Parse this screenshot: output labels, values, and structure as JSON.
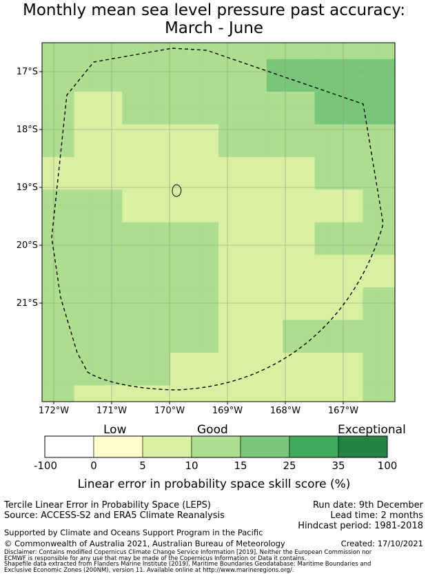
{
  "title_line1": "Monthly mean sea level pressure past accuracy:",
  "title_line2": "March - June",
  "lat_labels": [
    "17°S",
    "18°S",
    "19°S",
    "20°S",
    "21°S"
  ],
  "lon_labels": [
    "172°W",
    "171°W",
    "170°W",
    "169°W",
    "168°W",
    "167°W"
  ],
  "category_labels": {
    "low": "Low",
    "good": "Good",
    "exceptional": "Exceptional"
  },
  "colorbar": {
    "ticks": [
      "-100",
      "0",
      "5",
      "10",
      "15",
      "25",
      "35",
      "100"
    ],
    "colors": [
      "#ffffff",
      "#ffffcc",
      "#d9f0a3",
      "#addd8e",
      "#78c679",
      "#41ab5d",
      "#238443"
    ],
    "title": "Linear error in probability space skill score (%)"
  },
  "map_colors": {
    "c1": "#d9f0a3",
    "c2": "#addd8e",
    "c3": "#78c679"
  },
  "map_grid": {
    "lon_range": [
      -172.2,
      -166.2
    ],
    "lat_range": [
      -22.7,
      -16.5
    ],
    "rows": [
      [
        "c2",
        "c2",
        "c2",
        "c2",
        "c2",
        "c2",
        "c2",
        "c2",
        "c2",
        "c2",
        "c2",
        "c2",
        "c2",
        "c2",
        "c2",
        "c2",
        "c2",
        "c2",
        "c2",
        "c2",
        "c2",
        "c2"
      ],
      [
        "c2",
        "c2",
        "c2",
        "c2",
        "c2",
        "c2",
        "c2",
        "c2",
        "c2",
        "c2",
        "c2",
        "c2",
        "c2",
        "c2",
        "c3",
        "c3",
        "c3",
        "c3",
        "c3",
        "c3",
        "c3",
        "c3"
      ],
      [
        "c2",
        "c2",
        "c2",
        "c2",
        "c2",
        "c2",
        "c2",
        "c2",
        "c2",
        "c2",
        "c2",
        "c2",
        "c2",
        "c2",
        "c3",
        "c3",
        "c3",
        "c3",
        "c3",
        "c3",
        "c3",
        "c3"
      ],
      [
        "c2",
        "c2",
        "c1",
        "c1",
        "c1",
        "c2",
        "c2",
        "c2",
        "c2",
        "c2",
        "c2",
        "c2",
        "c2",
        "c2",
        "c2",
        "c2",
        "c2",
        "c3",
        "c3",
        "c3",
        "c3",
        "c3"
      ],
      [
        "c2",
        "c2",
        "c1",
        "c1",
        "c1",
        "c2",
        "c2",
        "c2",
        "c2",
        "c2",
        "c2",
        "c2",
        "c2",
        "c2",
        "c2",
        "c2",
        "c2",
        "c3",
        "c3",
        "c3",
        "c3",
        "c3"
      ],
      [
        "c2",
        "c2",
        "c1",
        "c1",
        "c1",
        "c1",
        "c1",
        "c1",
        "c1",
        "c1",
        "c1",
        "c2",
        "c2",
        "c2",
        "c2",
        "c2",
        "c2",
        "c2",
        "c2",
        "c2",
        "c2",
        "c2"
      ],
      [
        "c2",
        "c2",
        "c1",
        "c1",
        "c1",
        "c1",
        "c1",
        "c1",
        "c1",
        "c1",
        "c1",
        "c2",
        "c2",
        "c2",
        "c2",
        "c2",
        "c2",
        "c2",
        "c2",
        "c2",
        "c2",
        "c2"
      ],
      [
        "c1",
        "c1",
        "c1",
        "c1",
        "c1",
        "c1",
        "c1",
        "c1",
        "c1",
        "c1",
        "c1",
        "c1",
        "c1",
        "c1",
        "c1",
        "c1",
        "c1",
        "c2",
        "c2",
        "c2",
        "c2",
        "c2"
      ],
      [
        "c1",
        "c1",
        "c1",
        "c1",
        "c1",
        "c1",
        "c1",
        "c1",
        "c1",
        "c1",
        "c1",
        "c1",
        "c1",
        "c1",
        "c1",
        "c1",
        "c1",
        "c2",
        "c2",
        "c2",
        "c2",
        "c2"
      ],
      [
        "c2",
        "c2",
        "c2",
        "c2",
        "c2",
        "c1",
        "c1",
        "c1",
        "c1",
        "c1",
        "c1",
        "c1",
        "c1",
        "c1",
        "c1",
        "c1",
        "c1",
        "c1",
        "c1",
        "c1",
        "c2",
        "c2"
      ],
      [
        "c2",
        "c2",
        "c2",
        "c2",
        "c2",
        "c1",
        "c1",
        "c1",
        "c1",
        "c1",
        "c1",
        "c1",
        "c1",
        "c1",
        "c1",
        "c1",
        "c1",
        "c1",
        "c1",
        "c1",
        "c2",
        "c2"
      ],
      [
        "c2",
        "c2",
        "c2",
        "c2",
        "c2",
        "c2",
        "c2",
        "c2",
        "c2",
        "c2",
        "c2",
        "c1",
        "c1",
        "c1",
        "c1",
        "c1",
        "c1",
        "c2",
        "c2",
        "c2",
        "c2",
        "c2"
      ],
      [
        "c2",
        "c2",
        "c2",
        "c2",
        "c2",
        "c2",
        "c2",
        "c2",
        "c2",
        "c2",
        "c2",
        "c1",
        "c1",
        "c1",
        "c1",
        "c1",
        "c1",
        "c2",
        "c2",
        "c2",
        "c2",
        "c2"
      ],
      [
        "c2",
        "c2",
        "c2",
        "c2",
        "c2",
        "c2",
        "c2",
        "c2",
        "c2",
        "c2",
        "c2",
        "c1",
        "c1",
        "c1",
        "c1",
        "c1",
        "c1",
        "c1",
        "c1",
        "c1",
        "c1",
        "c1"
      ],
      [
        "c2",
        "c2",
        "c2",
        "c2",
        "c2",
        "c2",
        "c2",
        "c2",
        "c2",
        "c2",
        "c2",
        "c1",
        "c1",
        "c1",
        "c1",
        "c1",
        "c1",
        "c1",
        "c1",
        "c1",
        "c1",
        "c1"
      ],
      [
        "c2",
        "c2",
        "c2",
        "c2",
        "c2",
        "c2",
        "c2",
        "c2",
        "c2",
        "c2",
        "c2",
        "c1",
        "c1",
        "c1",
        "c1",
        "c1",
        "c1",
        "c1",
        "c1",
        "c1",
        "c2",
        "c2"
      ],
      [
        "c2",
        "c2",
        "c2",
        "c2",
        "c2",
        "c2",
        "c2",
        "c2",
        "c2",
        "c2",
        "c2",
        "c1",
        "c1",
        "c1",
        "c1",
        "c1",
        "c1",
        "c1",
        "c1",
        "c1",
        "c2",
        "c2"
      ],
      [
        "c2",
        "c2",
        "c2",
        "c2",
        "c2",
        "c2",
        "c2",
        "c2",
        "c2",
        "c2",
        "c2",
        "c1",
        "c1",
        "c1",
        "c1",
        "c2",
        "c2",
        "c2",
        "c2",
        "c2",
        "c2",
        "c2"
      ],
      [
        "c2",
        "c2",
        "c2",
        "c2",
        "c2",
        "c2",
        "c2",
        "c2",
        "c2",
        "c2",
        "c2",
        "c1",
        "c1",
        "c1",
        "c1",
        "c2",
        "c2",
        "c2",
        "c2",
        "c2",
        "c2",
        "c2"
      ],
      [
        "c2",
        "c2",
        "c2",
        "c2",
        "c2",
        "c2",
        "c2",
        "c2",
        "c1",
        "c1",
        "c1",
        "c1",
        "c1",
        "c1",
        "c1",
        "c1",
        "c1",
        "c1",
        "c1",
        "c1",
        "c2",
        "c2"
      ],
      [
        "c2",
        "c2",
        "c2",
        "c2",
        "c2",
        "c2",
        "c2",
        "c2",
        "c1",
        "c1",
        "c1",
        "c1",
        "c1",
        "c1",
        "c1",
        "c1",
        "c1",
        "c1",
        "c1",
        "c1",
        "c2",
        "c2"
      ],
      [
        "c2",
        "c2",
        "c1",
        "c1",
        "c1",
        "c1",
        "c1",
        "c1",
        "c1",
        "c1",
        "c1",
        "c1",
        "c1",
        "c1",
        "c1",
        "c1",
        "c1",
        "c1",
        "c1",
        "c1",
        "c2",
        "c2"
      ]
    ]
  },
  "footer": {
    "left1": "Tercile Linear Error in Probability Space (LEPS)",
    "left2": "Source: ACCESS-S2 and ERA5 Climate Reanalysis",
    "right1": "Run date: 9th December",
    "right2": "Lead time: 2 months",
    "right3": "Hindcast period: 1981-2018",
    "support": "Supported by Climate and Oceans Support Program in the Pacific",
    "copyright": "© Commonwealth of Australia 2021, Australian Bureau of Meteorology",
    "created": "Created: 17/10/2021",
    "disclaimer1": "Disclaimer: Contains modified Copernicus Climate Change Service Information [2019]. Neither the European Commission nor",
    "disclaimer2": "ECMWF is responsible for any use that may be made of the Copernicus Information or Data it contains.",
    "shapefile1": "Shapefile data extracted from Flanders Marine Institute (2019), Maritime Boundaries Geodatabase: Maritime Boundaries and",
    "shapefile2": "Exclusive Economic Zones (200NM), version 11. Available online at http://www.marineregions.org/."
  }
}
